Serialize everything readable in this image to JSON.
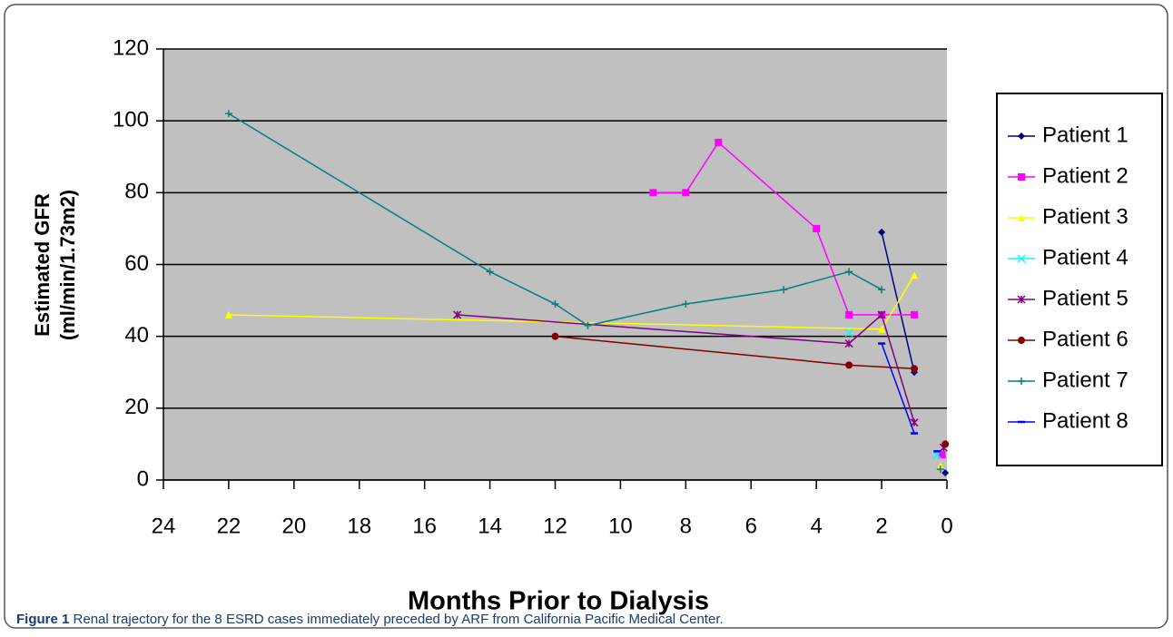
{
  "chart_data": {
    "type": "line",
    "x_label": "Months Prior to Dialysis",
    "y_label_lines": [
      "Estimated GFR",
      "(ml/min/1.73m2)"
    ],
    "xlim": [
      24,
      0
    ],
    "ylim": [
      0,
      120
    ],
    "xticks": [
      24,
      22,
      20,
      18,
      16,
      14,
      12,
      10,
      8,
      6,
      4,
      2,
      0
    ],
    "yticks": [
      0,
      20,
      40,
      60,
      80,
      100,
      120
    ],
    "grid": true,
    "legend": "right",
    "series": [
      {
        "name": "Patient 1",
        "color": "#000080",
        "marker": "diamond",
        "x": [
          2,
          1,
          null,
          0.05
        ],
        "values": [
          69,
          30,
          null,
          2
        ]
      },
      {
        "name": "Patient 2",
        "color": "#ff00ff",
        "marker": "square",
        "x": [
          9,
          8,
          7,
          4,
          3,
          2,
          1,
          null,
          0.15
        ],
        "values": [
          80,
          80,
          94,
          70,
          46,
          46,
          46,
          null,
          7
        ]
      },
      {
        "name": "Patient 3",
        "color": "#ffff00",
        "marker": "triangle",
        "x": [
          22,
          2,
          1,
          null,
          0.2
        ],
        "values": [
          46,
          42,
          57,
          null,
          4
        ]
      },
      {
        "name": "Patient 4",
        "color": "#00ffff",
        "marker": "x",
        "x": [
          3,
          null,
          0.3
        ],
        "values": [
          41,
          null,
          7
        ]
      },
      {
        "name": "Patient 5",
        "color": "#800080",
        "marker": "star",
        "x": [
          15,
          3,
          2,
          1,
          null,
          0.1
        ],
        "values": [
          46,
          38,
          46,
          16,
          null,
          9
        ]
      },
      {
        "name": "Patient 6",
        "color": "#800000",
        "marker": "circle",
        "x": [
          12,
          3,
          1,
          null,
          0.05
        ],
        "values": [
          40,
          32,
          31,
          null,
          10
        ]
      },
      {
        "name": "Patient 7",
        "color": "#008080",
        "marker": "plus",
        "x": [
          22,
          14,
          12,
          11,
          8,
          5,
          3,
          2,
          null,
          0.2
        ],
        "values": [
          102,
          58,
          49,
          43,
          49,
          53,
          58,
          53,
          null,
          3
        ]
      },
      {
        "name": "Patient 8",
        "color": "#0000ff",
        "marker": "dash",
        "x": [
          2,
          1,
          null,
          0.3
        ],
        "values": [
          38,
          13,
          null,
          8
        ]
      }
    ]
  },
  "caption": {
    "label": "Figure 1",
    "text": "Renal trajectory for the 8 ESRD cases immediately preceded by ARF from California Pacific Medical Center."
  }
}
